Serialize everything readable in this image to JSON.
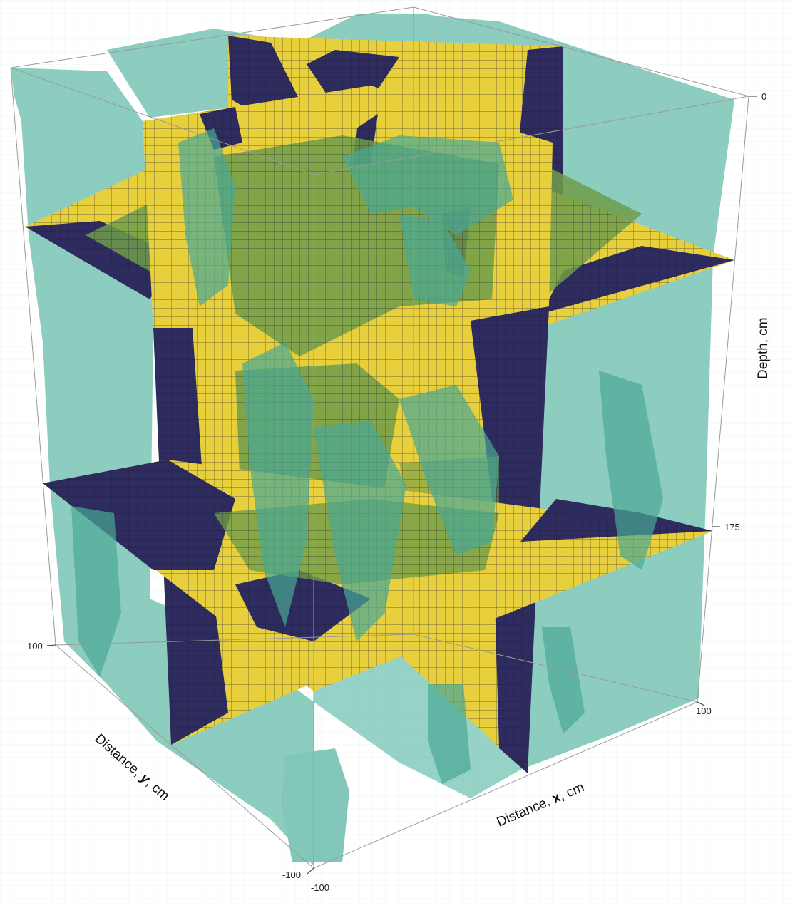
{
  "axes": {
    "x_label_prefix": "Distance, ",
    "x_label_var": "x",
    "x_label_suffix": ", cm",
    "y_label_prefix": "Distance, ",
    "y_label_var": "y",
    "y_label_suffix": ", cm",
    "z_label": "Depth, cm",
    "x_ticks": [
      "-100",
      "100"
    ],
    "y_ticks": [
      "-100",
      "100"
    ],
    "z_ticks": [
      "0",
      "175"
    ]
  },
  "colors": {
    "voxel": "#5fb8a6",
    "voxel_dark": "#2e8c80",
    "slice_yellow": "#e8cf3c",
    "slice_navy": "#2e2b5e",
    "slice_green": "#6f9c4a",
    "grid_line": "#1c1c2e",
    "frame": "#9a9a9a"
  },
  "slices": {
    "horizontal_depths_cm": [
      55,
      175
    ],
    "vertical_planes": [
      "x = 0",
      "y = 0"
    ]
  }
}
